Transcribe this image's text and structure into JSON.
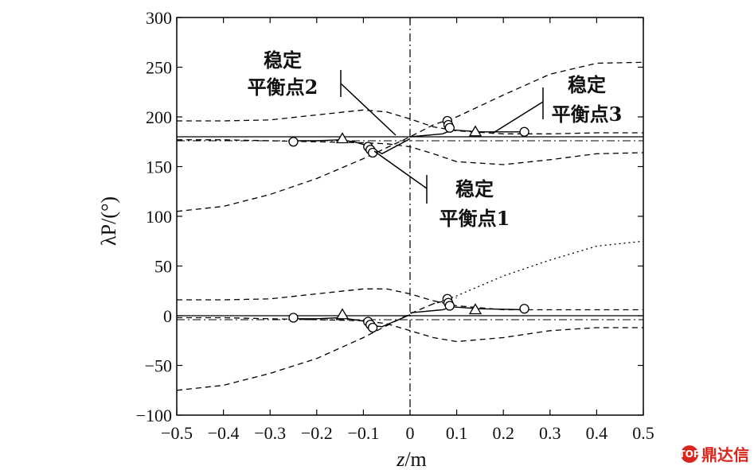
{
  "chart_data": {
    "type": "line",
    "xlabel_var": "z",
    "xlabel_unit": "/m",
    "ylabel": "λP/(°)",
    "xlim": [
      -0.5,
      0.5
    ],
    "ylim": [
      -100,
      300
    ],
    "x_ticks": [
      "−0.5",
      "−0.4",
      "−0.3",
      "−0.2",
      "−0.1",
      "0",
      "0.1",
      "0.2",
      "0.3",
      "0.4",
      "0.5"
    ],
    "y_ticks": [
      "300",
      "250",
      "200",
      "150",
      "100",
      "50",
      "0",
      "−50",
      "−100"
    ],
    "reference_lines": {
      "vertical_x": 0,
      "horizontal_y": [
        180,
        0
      ]
    },
    "annotations": [
      {
        "lines": [
          "稳定",
          "平衡点2"
        ]
      },
      {
        "lines": [
          "稳定",
          "平衡点3"
        ]
      },
      {
        "lines": [
          "稳定",
          "平衡点1"
        ]
      }
    ],
    "series": [
      {
        "style": "dashed",
        "x": [
          -0.5,
          -0.4,
          -0.3,
          -0.2,
          -0.1,
          -0.05,
          0,
          0.05,
          0.1,
          0.2,
          0.3,
          0.4,
          0.5
        ],
        "y": [
          196,
          196,
          197,
          202,
          207,
          205,
          198,
          190,
          186,
          183,
          183,
          184,
          184
        ]
      },
      {
        "style": "dashed",
        "x": [
          -0.5,
          -0.4,
          -0.3,
          -0.2,
          -0.1,
          -0.05,
          0,
          0.05,
          0.1,
          0.2,
          0.3,
          0.4,
          0.5
        ],
        "y": [
          177,
          177,
          176,
          175,
          174,
          173,
          170,
          163,
          155,
          152,
          157,
          163,
          164
        ]
      },
      {
        "style": "dashed",
        "x": [
          -0.5,
          -0.4,
          -0.3,
          -0.2,
          -0.1,
          0,
          0.05,
          0.1,
          0.2,
          0.3,
          0.4,
          0.5
        ],
        "y": [
          105,
          110,
          122,
          138,
          158,
          180,
          192,
          200,
          222,
          243,
          254,
          255
        ]
      },
      {
        "style": "dashed",
        "x": [
          -0.5,
          -0.4,
          -0.3,
          -0.2,
          -0.1,
          -0.05,
          0,
          0.05,
          0.1,
          0.2,
          0.3,
          0.4,
          0.5
        ],
        "y": [
          16,
          16,
          17,
          22,
          27,
          27,
          22,
          15,
          10,
          6,
          6,
          6,
          6
        ]
      },
      {
        "style": "dashed",
        "x": [
          -0.5,
          -0.4,
          -0.3,
          -0.2,
          -0.1,
          -0.05,
          0,
          0.05,
          0.1,
          0.2,
          0.3,
          0.4,
          0.5
        ],
        "y": [
          -2,
          -2,
          -3,
          -4,
          -5,
          -8,
          -15,
          -22,
          -26,
          -22,
          -15,
          -12,
          -12
        ]
      },
      {
        "style": "dashed",
        "x": [
          -0.5,
          -0.4,
          -0.3,
          -0.2,
          -0.1,
          0,
          0.05,
          0.1
        ],
        "y": [
          -75,
          -70,
          -58,
          -43,
          -22,
          2,
          12,
          18
        ]
      },
      {
        "style": "dotted",
        "x": [
          0.05,
          0.1,
          0.2,
          0.3,
          0.4,
          0.5
        ],
        "y": [
          12,
          20,
          40,
          56,
          70,
          75
        ]
      },
      {
        "style": "solid",
        "x": [
          -0.25,
          -0.2,
          -0.15,
          -0.12,
          -0.09,
          -0.08,
          -0.06,
          0
        ],
        "y": [
          176,
          176,
          177,
          175,
          171,
          168,
          163,
          178
        ]
      },
      {
        "style": "solid",
        "x": [
          0,
          0.07,
          0.09,
          0.15,
          0.25
        ],
        "y": [
          180,
          183,
          187,
          185,
          185
        ]
      },
      {
        "style": "solid",
        "x": [
          -0.25,
          -0.2,
          -0.15,
          -0.12,
          -0.09,
          -0.08,
          -0.06,
          0
        ],
        "y": [
          -3,
          -3,
          -2,
          -4,
          -6,
          -10,
          -11,
          1
        ]
      },
      {
        "style": "solid",
        "x": [
          0,
          0.07,
          0.09,
          0.15,
          0.25
        ],
        "y": [
          3,
          6,
          9,
          7,
          6
        ]
      }
    ],
    "markers": [
      {
        "shape": "circle",
        "x": -0.25,
        "y": 175
      },
      {
        "shape": "triangle",
        "x": -0.145,
        "y": 178
      },
      {
        "shape": "circle",
        "x": -0.09,
        "y": 170
      },
      {
        "shape": "circle",
        "x": -0.085,
        "y": 167
      },
      {
        "shape": "circle",
        "x": -0.08,
        "y": 164
      },
      {
        "shape": "circle",
        "x": 0.08,
        "y": 196
      },
      {
        "shape": "circle",
        "x": 0.082,
        "y": 192
      },
      {
        "shape": "circle",
        "x": 0.085,
        "y": 189
      },
      {
        "shape": "triangle",
        "x": 0.14,
        "y": 185
      },
      {
        "shape": "circle",
        "x": 0.245,
        "y": 185
      },
      {
        "shape": "circle",
        "x": -0.25,
        "y": -2
      },
      {
        "shape": "triangle",
        "x": -0.145,
        "y": 1
      },
      {
        "shape": "circle",
        "x": -0.09,
        "y": -6
      },
      {
        "shape": "circle",
        "x": -0.085,
        "y": -9
      },
      {
        "shape": "circle",
        "x": -0.08,
        "y": -12
      },
      {
        "shape": "circle",
        "x": 0.08,
        "y": 17
      },
      {
        "shape": "circle",
        "x": 0.082,
        "y": 13
      },
      {
        "shape": "circle",
        "x": 0.085,
        "y": 10
      },
      {
        "shape": "triangle",
        "x": 0.14,
        "y": 6
      },
      {
        "shape": "circle",
        "x": 0.245,
        "y": 7
      }
    ]
  },
  "watermark": {
    "text": "鼎达信",
    "logo_text": "TOP"
  }
}
